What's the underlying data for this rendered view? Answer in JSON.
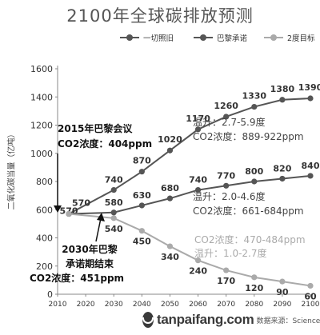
{
  "page": {
    "title": "2100年全球碳排放预测",
    "watermark_domain": "tanpaifang.com",
    "watermark_sub": "数据来源：Science"
  },
  "chart_data": {
    "type": "line",
    "title": "2100年全球碳排放预测",
    "xlabel": "",
    "ylabel": "二氧化碳当量（亿吨）",
    "x": [
      2010,
      2020,
      2030,
      2040,
      2050,
      2060,
      2070,
      2080,
      2090,
      2100
    ],
    "xlim": [
      2010,
      2100
    ],
    "ylim": [
      0,
      1600
    ],
    "yticks": [
      0,
      200,
      400,
      600,
      800,
      1000,
      1200,
      1400,
      1600
    ],
    "grid": false,
    "legend_position": "top",
    "series": [
      {
        "name": "一切照旧",
        "color": "#555555",
        "x": [
          2014,
          2030,
          2040,
          2050,
          2060,
          2070,
          2080,
          2090,
          2100
        ],
        "y": [
          570,
          740,
          870,
          1020,
          1170,
          1260,
          1330,
          1380,
          1390
        ],
        "labels": [
          "570",
          "740",
          "870",
          "1020",
          "1170",
          "1260",
          "1330",
          "1380",
          "1390"
        ],
        "label_color": "#333333"
      },
      {
        "name": "巴黎承诺",
        "color": "#555555",
        "x": [
          2014,
          2030,
          2040,
          2050,
          2060,
          2070,
          2080,
          2090,
          2100
        ],
        "y": [
          570,
          580,
          630,
          680,
          740,
          770,
          800,
          820,
          840
        ],
        "labels": [
          "",
          "580",
          "630",
          "680",
          "740",
          "770",
          "800",
          "820",
          "840"
        ],
        "label_color": "#333333"
      },
      {
        "name": "2度目标",
        "color": "#aaaaaa",
        "x": [
          2014,
          2030,
          2040,
          2050,
          2060,
          2070,
          2080,
          2090,
          2100
        ],
        "y": [
          570,
          540,
          450,
          340,
          240,
          170,
          120,
          90,
          60
        ],
        "labels": [
          "",
          "540",
          "450",
          "340",
          "240",
          "170",
          "120",
          "90",
          "60"
        ],
        "label_color": "#333333"
      }
    ],
    "annotations": {
      "event_2015": {
        "line1": "2015年巴黎会议",
        "line2": "CO2浓度：404ppm"
      },
      "event_2030": {
        "line1": "2030年巴黎",
        "line2": "承诺期结束",
        "line3": "CO2浓度：451ppm"
      },
      "bau_box": {
        "temp": "温升：2.7-5.9度",
        "co2": "CO2浓度：889-922ppm"
      },
      "paris_box": {
        "temp": "温升：2.0-4.6度",
        "co2": "CO2浓度：661-684ppm"
      },
      "twodeg_box": {
        "co2": "CO2浓度：470-484ppm",
        "temp": "温升：1.0-2.7度"
      }
    }
  }
}
